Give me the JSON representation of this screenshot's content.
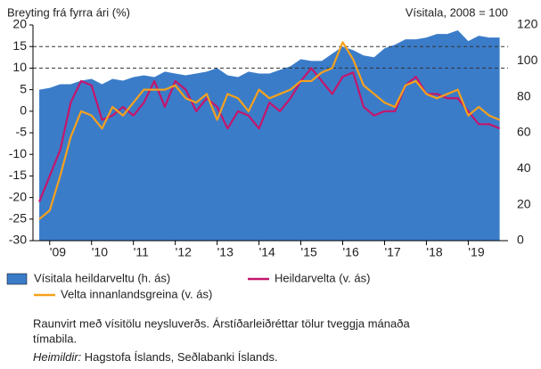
{
  "chart_data": {
    "type": "line",
    "y_label": "Breyting frá fyrra ári (%)",
    "y2_label": "Vísitala, 2008 = 100",
    "x": [
      2008.75,
      2009.0,
      2009.25,
      2009.5,
      2009.75,
      2010.0,
      2010.25,
      2010.5,
      2010.75,
      2011.0,
      2011.25,
      2011.5,
      2011.75,
      2012.0,
      2012.25,
      2012.5,
      2012.75,
      2013.0,
      2013.25,
      2013.5,
      2013.75,
      2014.0,
      2014.25,
      2014.5,
      2014.75,
      2015.0,
      2015.25,
      2015.5,
      2015.75,
      2016.0,
      2016.25,
      2016.5,
      2016.75,
      2017.0,
      2017.25,
      2017.5,
      2017.75,
      2018.0,
      2018.25,
      2018.5,
      2018.75,
      2019.0,
      2019.25,
      2019.5,
      2019.75
    ],
    "series": [
      {
        "name": "Vísitala heildarveltu (h. ás)",
        "type": "area",
        "axis": "y2",
        "color": "#3b7cc9",
        "values": [
          84,
          85,
          87,
          87,
          89,
          90,
          87,
          90,
          89,
          91,
          92,
          91,
          94,
          93,
          92,
          93,
          94,
          96,
          92,
          91,
          94,
          93,
          93,
          95,
          97,
          101,
          100,
          100,
          104,
          108,
          106,
          103,
          102,
          107,
          109,
          112,
          112,
          113,
          115,
          115,
          117,
          111,
          114,
          113,
          113
        ]
      },
      {
        "name": "Heildarvelta (v. ás)",
        "type": "line",
        "color": "#c4166c",
        "values": [
          -21,
          -15,
          -9,
          2,
          7,
          6,
          -2,
          -1,
          1,
          -1,
          2,
          7,
          1,
          7,
          5,
          0,
          3,
          1,
          -4,
          0,
          -1,
          -4,
          2,
          0,
          3,
          7,
          10,
          7,
          4,
          8,
          9,
          1,
          -1,
          0,
          0,
          6,
          8,
          4,
          4,
          3,
          3,
          0,
          -3,
          -3,
          -4
        ]
      },
      {
        "name": "Velta innanlandsgreina (v. ás)",
        "type": "line",
        "color": "#f5a11c",
        "values": [
          -25,
          -23,
          -15,
          -6,
          0,
          -1,
          -4,
          1,
          -1,
          2,
          5,
          5,
          5,
          6,
          3,
          2,
          4,
          -2,
          4,
          3,
          0,
          5,
          3,
          4,
          5,
          7,
          7,
          9,
          10,
          16,
          12,
          6,
          4,
          2,
          1,
          6,
          7,
          4,
          3,
          4,
          5,
          -1,
          1,
          -1,
          -2
        ]
      }
    ],
    "xlim": [
      2008.6,
      2019.95
    ],
    "xticks": [
      {
        "value": 2009,
        "label": "'09"
      },
      {
        "value": 2010,
        "label": "'10"
      },
      {
        "value": 2011,
        "label": "'11"
      },
      {
        "value": 2012,
        "label": "'12"
      },
      {
        "value": 2013,
        "label": "'13"
      },
      {
        "value": 2014,
        "label": "'14"
      },
      {
        "value": 2015,
        "label": "'15"
      },
      {
        "value": 2016,
        "label": "'16"
      },
      {
        "value": 2017,
        "label": "'17"
      },
      {
        "value": 2018,
        "label": "'18"
      },
      {
        "value": 2019,
        "label": "'19"
      }
    ],
    "ylim": [
      -30,
      20
    ],
    "yticks": [
      -30,
      -25,
      -20,
      -15,
      -10,
      -5,
      0,
      5,
      10,
      15,
      20
    ],
    "y2lim": [
      0,
      120
    ],
    "y2ticks": [
      0,
      20,
      40,
      60,
      80,
      100,
      120
    ],
    "reference_lines": [
      10,
      15
    ],
    "notes": "Raunvirt með vísitölu neysluverðs. Árstíðarleiðréttar tölur tveggja mánaða tímabila.",
    "source": {
      "label": "Heimildir:",
      "text": "Hagstofa Íslands, Seðlabanki Íslands."
    }
  }
}
